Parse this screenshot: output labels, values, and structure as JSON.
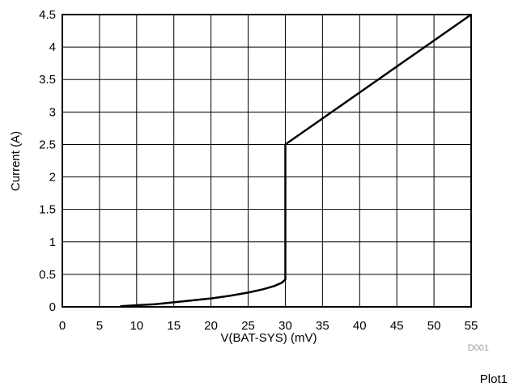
{
  "chart_data": {
    "type": "line",
    "xlabel": "V(BAT-SYS) (mV)",
    "ylabel": "Current (A)",
    "xlim": [
      0,
      55
    ],
    "ylim": [
      0,
      4.5
    ],
    "x_ticks": [
      0,
      5,
      10,
      15,
      20,
      25,
      30,
      35,
      40,
      45,
      50,
      55
    ],
    "y_ticks": [
      0,
      0.5,
      1,
      1.5,
      2,
      2.5,
      3,
      3.5,
      4,
      4.5
    ],
    "grid": true,
    "series": [
      {
        "color": "#000000",
        "x": [
          7.8,
          10,
          12.5,
          15,
          17.5,
          20,
          22.5,
          25,
          27,
          28.5,
          29.5,
          30,
          30,
          30,
          55
        ],
        "y": [
          0.01,
          0.025,
          0.04,
          0.07,
          0.1,
          0.13,
          0.17,
          0.22,
          0.27,
          0.32,
          0.37,
          0.42,
          1.5,
          2.5,
          4.5
        ]
      }
    ]
  },
  "ref_label": "D001",
  "plot_label": "Plot1"
}
